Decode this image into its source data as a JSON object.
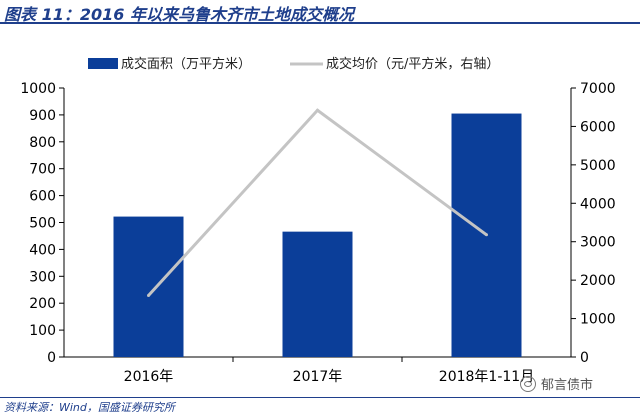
{
  "header": {
    "title": "图表 11：2016 年以来乌鲁木齐市土地成交概况"
  },
  "footer": {
    "source": "资料来源：Wind，国盛证券研究所",
    "watermark": "郁言债市",
    "watermark_icon": "wechat-icon"
  },
  "colors": {
    "bar": "#0b3e99",
    "line": "#c4c4c4",
    "title": "#1f3f8c",
    "axis": "#000000"
  },
  "chart_data": {
    "type": "bar",
    "categories": [
      "2016年",
      "2017年",
      "2018年1-11月"
    ],
    "series": [
      {
        "name": "成交面积（万平方米）",
        "type": "bar",
        "axis": "left",
        "values": [
          522,
          466,
          905
        ]
      },
      {
        "name": "成交均价（元/平方米，右轴）",
        "type": "line",
        "axis": "right",
        "values": [
          1600,
          6420,
          3180
        ]
      }
    ],
    "y_left": {
      "min": 0,
      "max": 1000,
      "ticks": [
        "0",
        "100",
        "200",
        "300",
        "400",
        "500",
        "600",
        "700",
        "800",
        "900",
        "1000"
      ]
    },
    "y_right": {
      "min": 0,
      "max": 7000,
      "ticks": [
        "0",
        "1000",
        "2000",
        "3000",
        "4000",
        "5000",
        "6000",
        "7000"
      ]
    },
    "legend_position": "top",
    "grid": false
  }
}
